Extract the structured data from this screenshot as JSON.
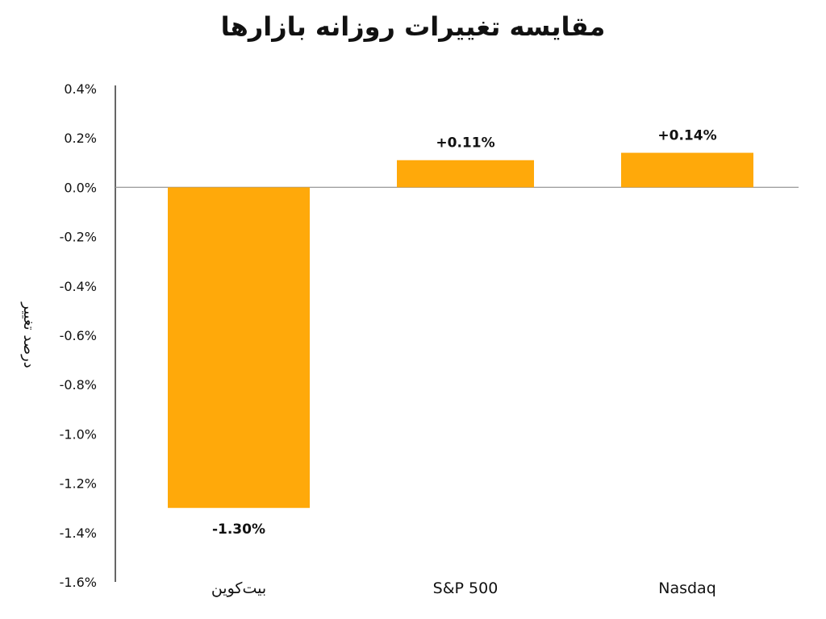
{
  "chart_data": {
    "type": "bar",
    "title": "مقایسه تغییرات روزانه بازارها",
    "ylabel": "درصد تغییر",
    "xlabel": "",
    "categories": [
      "بیت‌کوین",
      "S&P 500",
      "Nasdaq"
    ],
    "values": [
      -1.3,
      0.11,
      0.14
    ],
    "value_labels": [
      "-1.30%",
      "+0.11%",
      "+0.14%"
    ],
    "ylim": [
      -1.6,
      0.4
    ],
    "yticks": [
      "0.4%",
      "0.2%",
      "0.0%",
      "-0.2%",
      "-0.4%",
      "-0.6%",
      "-0.8%",
      "-1.0%",
      "-1.2%",
      "-1.4%",
      "-1.6%"
    ],
    "ytick_values": [
      0.4,
      0.2,
      0.0,
      -0.2,
      -0.4,
      -0.6,
      -0.8,
      -1.0,
      -1.2,
      -1.4,
      -1.6
    ],
    "bar_color": "#FFA90A",
    "grid": false,
    "legend": "none"
  }
}
